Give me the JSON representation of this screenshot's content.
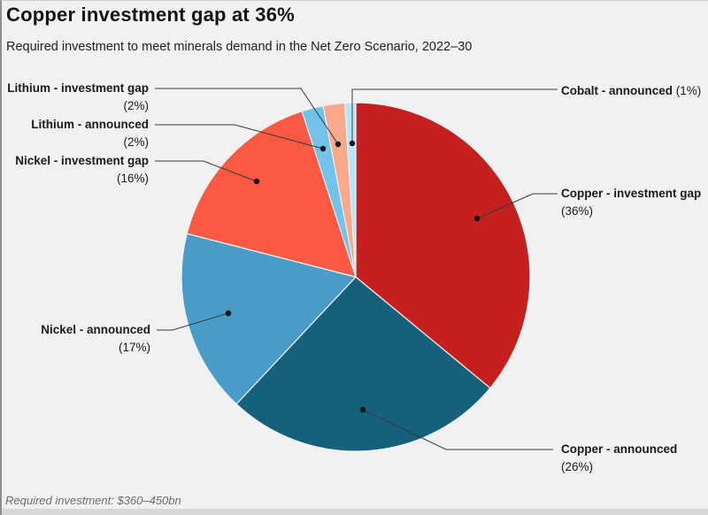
{
  "header": {
    "title": "Copper investment gap at 36%",
    "subtitle": "Required investment to meet minerals demand in the Net Zero Scenario, 2022–30"
  },
  "footer": {
    "note": "Required investment: $360–450bn"
  },
  "chart_data": {
    "type": "pie",
    "title": "Copper investment gap at 36%",
    "subtitle": "Required investment to meet minerals demand in the Net Zero Scenario, 2022–30",
    "note": "Required investment: $360–450bn",
    "start_angle_deg": 0,
    "direction": "clockwise",
    "slices": [
      {
        "label": "Copper - investment gap",
        "pct_label": "(36%)",
        "value": 36,
        "color": "#c51f1f"
      },
      {
        "label": "Copper - announced",
        "pct_label": "(26%)",
        "value": 26,
        "color": "#15607b"
      },
      {
        "label": "Nickel - announced",
        "pct_label": "(17%)",
        "value": 17,
        "color": "#4a9cc8"
      },
      {
        "label": "Nickel - investment gap",
        "pct_label": "(16%)",
        "value": 16,
        "color": "#fa5a43"
      },
      {
        "label": "Lithium - announced",
        "pct_label": "(2%)",
        "value": 2,
        "color": "#72c2e9"
      },
      {
        "label": "Lithium - investment gap",
        "pct_label": "(2%)",
        "value": 2,
        "color": "#f8a98c"
      },
      {
        "label": "Cobalt - announced",
        "pct_label": "(1%)",
        "value": 1,
        "color": "#b5e5f6"
      }
    ]
  }
}
